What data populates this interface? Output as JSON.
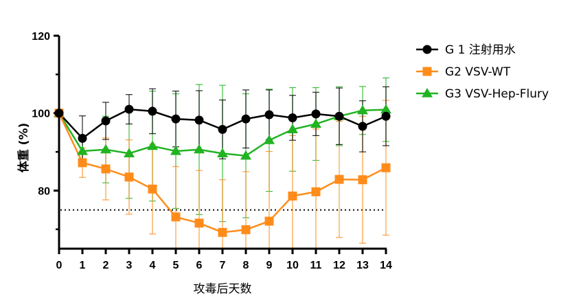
{
  "chart_data": {
    "type": "line",
    "title": "",
    "xlabel": "攻毒后天数",
    "ylabel": "体重 (%)",
    "x": [
      0,
      1,
      2,
      3,
      4,
      5,
      6,
      7,
      8,
      9,
      10,
      11,
      12,
      13,
      14
    ],
    "xlim": [
      0,
      14
    ],
    "ylim": [
      65,
      120
    ],
    "yticks_labeled": [
      80,
      100,
      120
    ],
    "yticks_minor": [
      70,
      90,
      110
    ],
    "reference_line": {
      "y": 75,
      "style": "dotted"
    },
    "legend_placement": "top-right",
    "series": [
      {
        "name": "G 1 注射用水",
        "color": "#000000",
        "marker": "circle",
        "values": [
          100,
          93.5,
          98,
          101,
          100.5,
          98.5,
          98.2,
          95.8,
          98.5,
          99.6,
          98.8,
          99.8,
          99.2,
          96.6,
          99.2
        ],
        "errors": [
          0,
          5.8,
          4.8,
          3.8,
          5.8,
          7.2,
          7.6,
          7.6,
          7.5,
          6.4,
          5.8,
          5.6,
          7.3,
          6.6,
          7.6
        ]
      },
      {
        "name": "G2 VSV-WT",
        "color": "#ff8c1a",
        "marker": "square",
        "values": [
          100,
          87.2,
          85.6,
          83.5,
          80.4,
          73.2,
          71.6,
          69.2,
          69.9,
          72.1,
          78.6,
          79.7,
          82.9,
          82.8,
          85.9
        ],
        "errors": [
          0,
          3.8,
          8,
          9.6,
          11.6,
          13,
          13.6,
          13.6,
          15,
          18,
          15.6,
          16.2,
          15,
          16.4,
          17.4
        ]
      },
      {
        "name": "G3 VSV-Hep-Flury",
        "color": "#21b321",
        "marker": "triangle",
        "values": [
          100,
          90.2,
          90.6,
          89.6,
          91.5,
          90.2,
          90.6,
          89.6,
          89,
          93,
          95.8,
          97.2,
          99.2,
          100.7,
          100.9
        ],
        "errors": [
          0,
          3.6,
          8.6,
          11.6,
          14.2,
          14.8,
          16.8,
          17.6,
          16,
          13.2,
          10.8,
          9.4,
          7.6,
          6.2,
          8.2
        ]
      }
    ]
  }
}
